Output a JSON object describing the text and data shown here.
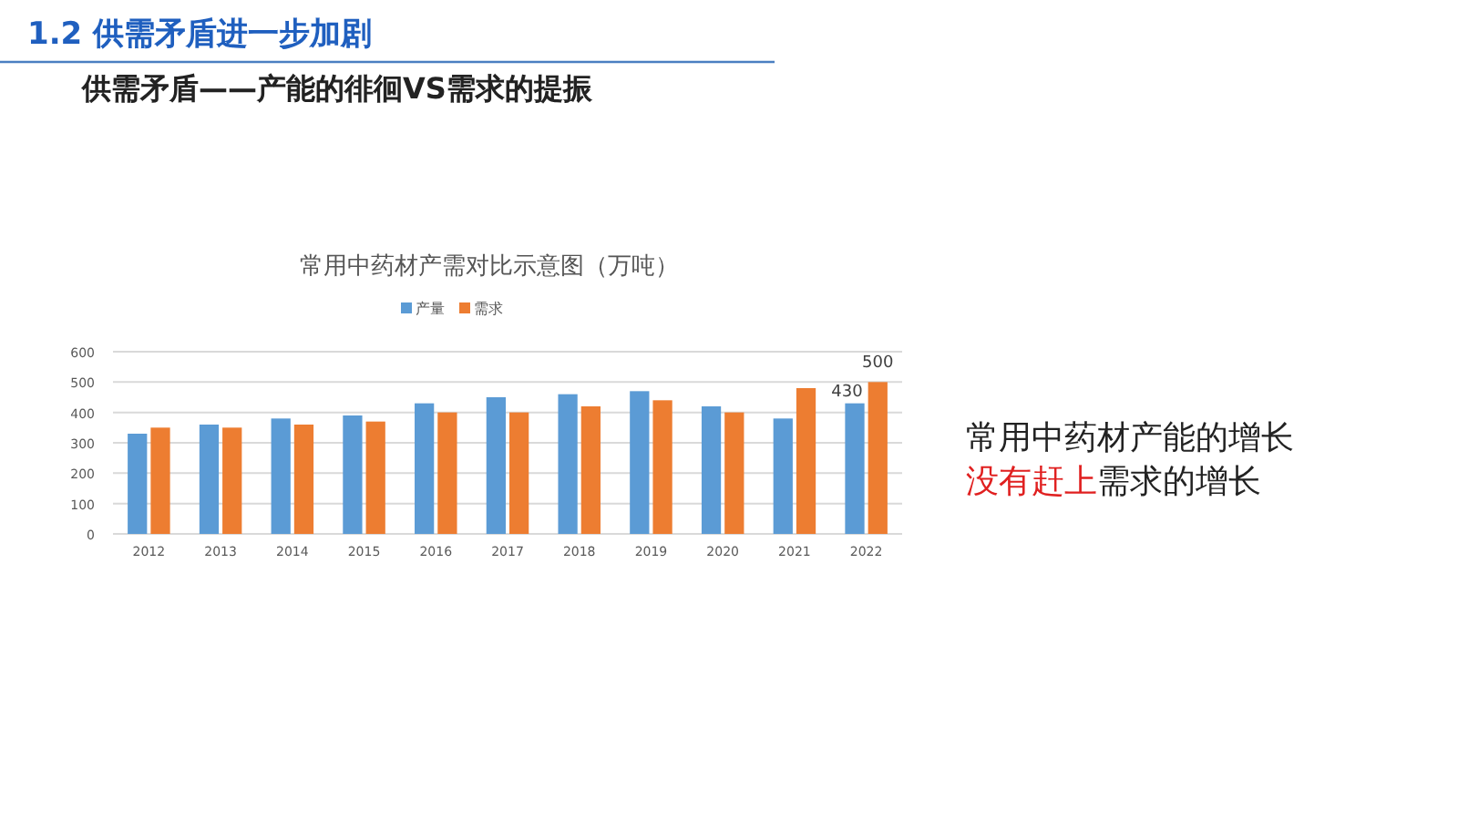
{
  "chart_data": {
    "type": "bar",
    "title": "常用中药材产需对比示意图（万吨）",
    "annotations": [
      "1.2  供需矛盾进一步加剧",
      "供需矛盾——产能的徘徊VS需求的提振",
      "常用中药材产能的增长",
      "没有赶上",
      "需求的增长"
    ],
    "categories": [
      "2012",
      "2013",
      "2014",
      "2015",
      "2016",
      "2017",
      "2018",
      "2019",
      "2020",
      "2021",
      "2022"
    ],
    "series": [
      {
        "name": "产量",
        "color": "#5b9bd5",
        "values": [
          330,
          360,
          380,
          390,
          430,
          450,
          460,
          470,
          420,
          380,
          430
        ],
        "value_labels": [
          null,
          null,
          null,
          null,
          null,
          null,
          null,
          null,
          null,
          null,
          "430"
        ]
      },
      {
        "name": "需求",
        "color": "#ed7d31",
        "values": [
          350,
          350,
          360,
          370,
          400,
          400,
          420,
          440,
          400,
          480,
          500
        ],
        "value_labels": [
          null,
          null,
          null,
          null,
          null,
          null,
          null,
          null,
          null,
          null,
          "500"
        ]
      }
    ],
    "ylim": [
      0,
      600
    ],
    "yticks": [
      0,
      100,
      200,
      300,
      400,
      500,
      600
    ],
    "grid": "y",
    "legend": "top"
  }
}
